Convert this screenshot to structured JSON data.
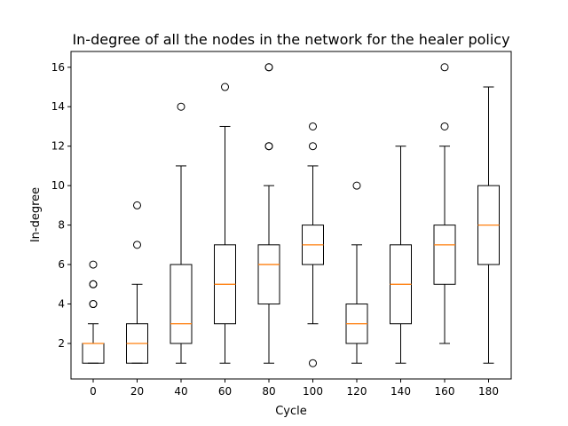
{
  "chart_data": {
    "type": "box",
    "title": "In-degree of all the nodes in the network for the healer policy",
    "xlabel": "Cycle",
    "ylabel": "In-degree",
    "categories": [
      "0",
      "20",
      "40",
      "60",
      "80",
      "100",
      "120",
      "140",
      "160",
      "180"
    ],
    "yticks": [
      2,
      4,
      6,
      8,
      10,
      12,
      14,
      16
    ],
    "ylim": [
      0.2,
      16.8
    ],
    "grid": false,
    "boxes": [
      {
        "cycle": "0",
        "whisker_low": 1,
        "q1": 1,
        "median": 2,
        "q3": 2,
        "whisker_high": 3,
        "outliers": [
          4,
          4,
          5,
          5,
          6
        ]
      },
      {
        "cycle": "20",
        "whisker_low": 1,
        "q1": 1,
        "median": 2,
        "q3": 3,
        "whisker_high": 5,
        "outliers": [
          7,
          9
        ]
      },
      {
        "cycle": "40",
        "whisker_low": 1,
        "q1": 2,
        "median": 3,
        "q3": 6,
        "whisker_high": 11,
        "outliers": [
          14
        ]
      },
      {
        "cycle": "60",
        "whisker_low": 1,
        "q1": 3,
        "median": 5,
        "q3": 7,
        "whisker_high": 13,
        "outliers": [
          15
        ]
      },
      {
        "cycle": "80",
        "whisker_low": 1,
        "q1": 4,
        "median": 6,
        "q3": 7,
        "whisker_high": 10,
        "outliers": [
          12,
          12,
          16,
          16
        ]
      },
      {
        "cycle": "100",
        "whisker_low": 3,
        "q1": 6,
        "median": 7,
        "q3": 8,
        "whisker_high": 11,
        "outliers": [
          1,
          12,
          13
        ]
      },
      {
        "cycle": "120",
        "whisker_low": 1,
        "q1": 2,
        "median": 3,
        "q3": 4,
        "whisker_high": 7,
        "outliers": [
          10
        ]
      },
      {
        "cycle": "140",
        "whisker_low": 1,
        "q1": 3,
        "median": 5,
        "q3": 7,
        "whisker_high": 12,
        "outliers": []
      },
      {
        "cycle": "160",
        "whisker_low": 2,
        "q1": 5,
        "median": 7,
        "q3": 8,
        "whisker_high": 12,
        "outliers": [
          13,
          16
        ]
      },
      {
        "cycle": "180",
        "whisker_low": 1,
        "q1": 6,
        "median": 8,
        "q3": 10,
        "whisker_high": 15,
        "outliers": []
      }
    ],
    "colors": {
      "box": "#000000",
      "median": "#ff7f0e",
      "outlier": "#000000"
    }
  }
}
